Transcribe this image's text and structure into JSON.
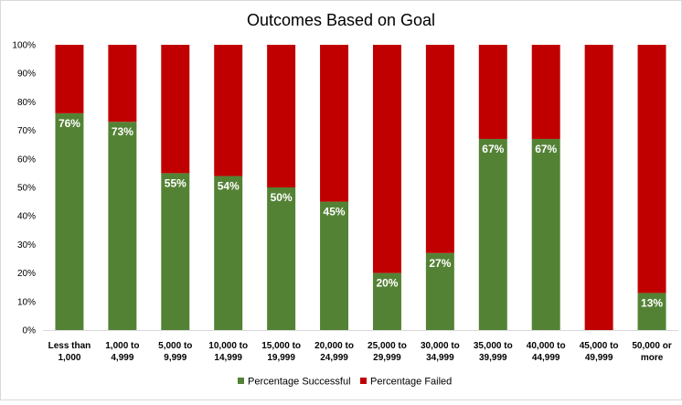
{
  "chart_data": {
    "type": "bar",
    "stacked": true,
    "title": "Outcomes Based on Goal",
    "xlabel": "",
    "ylabel": "",
    "ylim": [
      0,
      100
    ],
    "y_ticks": [
      "0%",
      "10%",
      "20%",
      "30%",
      "40%",
      "50%",
      "60%",
      "70%",
      "80%",
      "90%",
      "100%"
    ],
    "grid": false,
    "legend_position": "bottom",
    "categories": [
      [
        "Less than",
        "1,000"
      ],
      [
        "1,000 to",
        "4,999"
      ],
      [
        "5,000 to",
        "9,999"
      ],
      [
        "10,000 to",
        "14,999"
      ],
      [
        "15,000 to",
        "19,999"
      ],
      [
        "20,000 to",
        "24,999"
      ],
      [
        "25,000 to",
        "29,999"
      ],
      [
        "30,000 to",
        "34,999"
      ],
      [
        "35,000 to",
        "39,999"
      ],
      [
        "40,000 to",
        "44,999"
      ],
      [
        "45,000 to",
        "49,999"
      ],
      [
        "50,000 or",
        "more"
      ]
    ],
    "series": [
      {
        "name": "Percentage Successful",
        "color": "#548235",
        "values": [
          76,
          73,
          55,
          54,
          50,
          45,
          20,
          27,
          67,
          67,
          0,
          13
        ],
        "labels": [
          "76%",
          "73%",
          "55%",
          "54%",
          "50%",
          "45%",
          "20%",
          "27%",
          "67%",
          "67%",
          "",
          "13%"
        ]
      },
      {
        "name": "Percentage Failed",
        "color": "#c00000",
        "values": [
          24,
          27,
          45,
          46,
          50,
          55,
          80,
          73,
          33,
          33,
          100,
          87
        ]
      }
    ]
  }
}
